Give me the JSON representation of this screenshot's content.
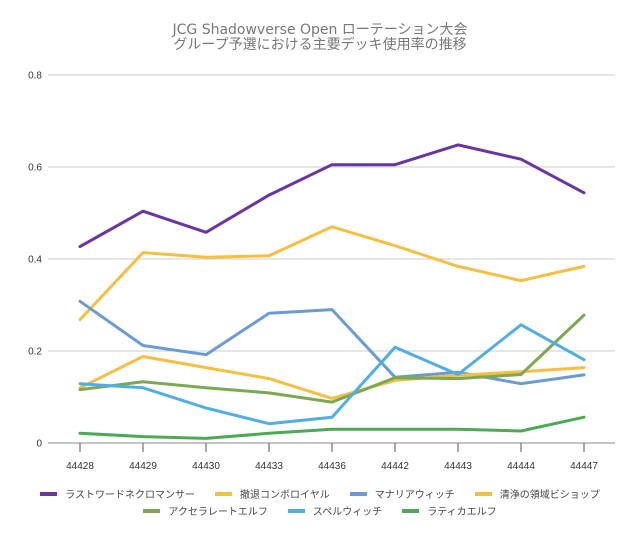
{
  "chart_data": {
    "type": "line",
    "title": "JCG Shadowverse Open ローテーション大会",
    "subtitle": "グループ予選における主要デッキ使用率の推移",
    "xlabel": "",
    "ylabel": "",
    "categories": [
      "44428",
      "44429",
      "44430",
      "44433",
      "44436",
      "44442",
      "44443",
      "44444",
      "44447"
    ],
    "ylim": [
      0,
      0.8
    ],
    "yticks": [
      "0",
      "0.2",
      "0.4",
      "0.6",
      "0.8"
    ],
    "grid": true,
    "legend_position": "bottom",
    "series": [
      {
        "name": "ラストワードネクロマンサー",
        "color": "#6a35a3",
        "values": [
          0.427,
          0.504,
          0.458,
          0.539,
          0.605,
          0.605,
          0.648,
          0.617,
          0.544
        ]
      },
      {
        "name": "撤退コンボロイヤル",
        "color": "#f5bf42",
        "values": [
          0.268,
          0.414,
          0.404,
          0.407,
          0.47,
          0.429,
          0.384,
          0.353,
          0.384
        ]
      },
      {
        "name": "マナリアウィッチ",
        "color": "#6a9bd3",
        "values": [
          0.308,
          0.212,
          0.192,
          0.282,
          0.29,
          0.143,
          0.154,
          0.129,
          0.148
        ]
      },
      {
        "name": "清浄の領域ビショップ",
        "color": "#f5bf42",
        "values": [
          0.12,
          0.188,
          0.164,
          0.14,
          0.097,
          0.136,
          0.147,
          0.155,
          0.164
        ]
      },
      {
        "name": "アクセラレートエルフ",
        "color": "#7ca94f",
        "values": [
          0.116,
          0.133,
          0.12,
          0.109,
          0.089,
          0.142,
          0.14,
          0.149,
          0.278
        ]
      },
      {
        "name": "スペルウィッチ",
        "color": "#4faee6",
        "values": [
          0.129,
          0.12,
          0.076,
          0.042,
          0.056,
          0.208,
          0.149,
          0.257,
          0.181
        ]
      },
      {
        "name": "ラティカエルフ",
        "color": "#4aaa55",
        "values": [
          0.021,
          0.014,
          0.01,
          0.021,
          0.03,
          0.03,
          0.03,
          0.026,
          0.056
        ]
      }
    ]
  }
}
